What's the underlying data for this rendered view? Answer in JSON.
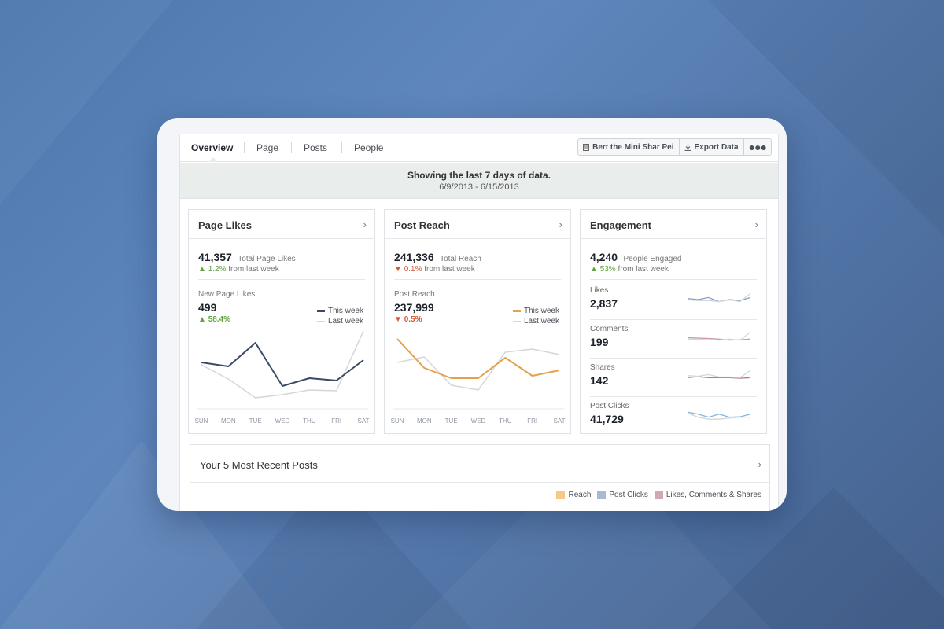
{
  "tabs": [
    "Overview",
    "Page",
    "Posts",
    "People"
  ],
  "toolbar": {
    "page_name": "Bert the Mini Shar Pei",
    "export_label": "Export Data",
    "more_label": "●●●"
  },
  "banner": {
    "line1": "Showing the last 7 days of data.",
    "line2": "6/9/2013 - 6/15/2013"
  },
  "page_likes": {
    "title": "Page Likes",
    "total": "41,357",
    "total_label": "Total Page Likes",
    "delta": "1.2%",
    "delta_text": "from last week",
    "sub_label": "New Page Likes",
    "sub_value": "499",
    "sub_delta": "58.4%",
    "legend_this": "This week",
    "legend_last": "Last week",
    "color_this": "#3b4a66",
    "color_last": "#d3d6db"
  },
  "post_reach": {
    "title": "Post Reach",
    "total": "241,336",
    "total_label": "Total Reach",
    "delta": "0.1%",
    "delta_text": "from last week",
    "sub_label": "Post Reach",
    "sub_value": "237,999",
    "sub_delta": "0.5%",
    "legend_this": "This week",
    "legend_last": "Last week",
    "color_this": "#e6a04c",
    "color_last": "#d3d6db"
  },
  "engagement": {
    "title": "Engagement",
    "total": "4,240",
    "total_label": "People Engaged",
    "delta": "53%",
    "delta_text": "from last week",
    "rows": [
      {
        "label": "Likes",
        "value": "2,837"
      },
      {
        "label": "Comments",
        "value": "199"
      },
      {
        "label": "Shares",
        "value": "142"
      },
      {
        "label": "Post Clicks",
        "value": "41,729"
      }
    ]
  },
  "recent_posts": {
    "title": "Your 5 Most Recent Posts",
    "legend": [
      {
        "label": "Reach",
        "color": "#f5c987"
      },
      {
        "label": "Post Clicks",
        "color": "#a9b9d6"
      },
      {
        "label": "Likes, Comments & Shares",
        "color": "#d1a7b2"
      }
    ]
  },
  "chart_data": [
    {
      "type": "line",
      "x": [
        "SUN",
        "MON",
        "TUE",
        "WED",
        "THU",
        "FRI",
        "SAT"
      ],
      "series": [
        {
          "name": "This week",
          "values": [
            55,
            50,
            80,
            25,
            35,
            32,
            58
          ]
        },
        {
          "name": "Last week",
          "values": [
            52,
            34,
            10,
            14,
            20,
            19,
            95
          ]
        }
      ],
      "ylim": [
        0,
        100
      ]
    },
    {
      "type": "line",
      "x": [
        "SUN",
        "MON",
        "TUE",
        "WED",
        "THU",
        "FRI",
        "SAT"
      ],
      "series": [
        {
          "name": "This week",
          "values": [
            85,
            48,
            35,
            35,
            61,
            38,
            45
          ]
        },
        {
          "name": "Last week",
          "values": [
            55,
            62,
            26,
            20,
            68,
            72,
            65
          ]
        }
      ],
      "ylim": [
        0,
        100
      ]
    },
    {
      "type": "line",
      "x": [
        1,
        2,
        3,
        4,
        5,
        6,
        7
      ],
      "series": [
        {
          "values": [
            55,
            50,
            60,
            40,
            50,
            45,
            60
          ]
        },
        {
          "values": [
            50,
            45,
            45,
            40,
            48,
            40,
            80
          ]
        }
      ]
    },
    {
      "type": "line",
      "x": [
        1,
        2,
        3,
        4,
        5,
        6,
        7
      ],
      "series": [
        {
          "values": [
            52,
            50,
            48,
            45,
            40,
            42,
            45
          ]
        },
        {
          "values": [
            45,
            45,
            42,
            40,
            45,
            40,
            80
          ]
        }
      ]
    },
    {
      "type": "line",
      "x": [
        1,
        2,
        3,
        4,
        5,
        6,
        7
      ],
      "series": [
        {
          "values": [
            45,
            50,
            45,
            45,
            45,
            42,
            45
          ]
        },
        {
          "values": [
            55,
            52,
            60,
            48,
            48,
            45,
            80
          ]
        }
      ]
    },
    {
      "type": "line",
      "x": [
        1,
        2,
        3,
        4,
        5,
        6,
        7
      ],
      "series": [
        {
          "values": [
            65,
            55,
            40,
            55,
            40,
            42,
            55
          ]
        },
        {
          "values": [
            60,
            40,
            30,
            30,
            35,
            40,
            40
          ]
        }
      ]
    }
  ]
}
